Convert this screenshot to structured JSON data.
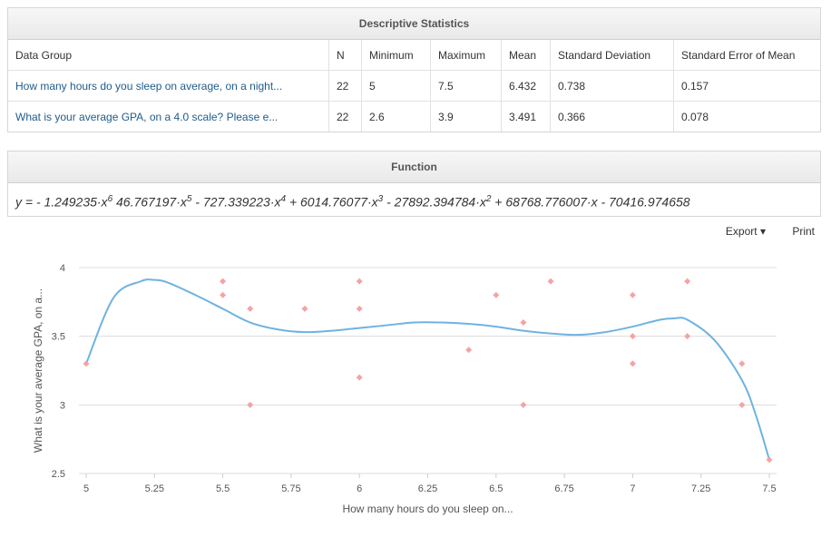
{
  "stats_panel": {
    "title": "Descriptive Statistics",
    "headers": [
      "Data Group",
      "N",
      "Minimum",
      "Maximum",
      "Mean",
      "Standard Deviation",
      "Standard Error of Mean"
    ],
    "rows": [
      [
        "How many hours do you sleep on average, on a night...",
        "22",
        "5",
        "7.5",
        "6.432",
        "0.738",
        "0.157"
      ],
      [
        "What is your average GPA, on a 4.0 scale? Please e...",
        "22",
        "2.6",
        "3.9",
        "3.491",
        "0.366",
        "0.078"
      ]
    ]
  },
  "function_panel": {
    "title": "Function"
  },
  "toolbar": {
    "export_label": "Export",
    "print_label": "Print"
  },
  "colors": {
    "curve": "#6fb3e0",
    "points": "#f4a3a3",
    "link": "#1f5c8b"
  },
  "chart_data": {
    "type": "scatter",
    "xlabel": "How many hours do you sleep on...",
    "ylabel": "What is your average GPA, on a...",
    "xlim": [
      5,
      7.5
    ],
    "ylim": [
      2.5,
      4
    ],
    "x_ticks": [
      "5",
      "5.25",
      "5.5",
      "5.75",
      "6",
      "6.25",
      "6.5",
      "6.75",
      "7",
      "7.25",
      "7.5"
    ],
    "y_ticks": [
      "2.5",
      "3",
      "3.5",
      "4"
    ],
    "grid": true,
    "points": [
      [
        5,
        3.3
      ],
      [
        5.5,
        3.9
      ],
      [
        5.5,
        3.8
      ],
      [
        5.6,
        3.7
      ],
      [
        5.6,
        3.0
      ],
      [
        5.8,
        3.7
      ],
      [
        6,
        3.9
      ],
      [
        6,
        3.7
      ],
      [
        6,
        3.2
      ],
      [
        6.4,
        3.4
      ],
      [
        6.5,
        3.8
      ],
      [
        6.6,
        3.6
      ],
      [
        6.6,
        3.0
      ],
      [
        6.7,
        3.9
      ],
      [
        7,
        3.8
      ],
      [
        7,
        3.5
      ],
      [
        7,
        3.3
      ],
      [
        7.2,
        3.9
      ],
      [
        7.2,
        3.5
      ],
      [
        7.4,
        3.3
      ],
      [
        7.4,
        3.0
      ],
      [
        7.5,
        2.6
      ]
    ],
    "fit": {
      "equation_prefix": "y = - 1.249235·x",
      "equation_parts": [
        {
          "text": "y = - 1.249235·x",
          "sup": "6"
        },
        {
          "text": " 46.767197·x",
          "sup": "5"
        },
        {
          "text": " - 727.339223·x",
          "sup": "4"
        },
        {
          "text": " + 6014.76077·x",
          "sup": "3"
        },
        {
          "text": " - 27892.394784·x",
          "sup": "2"
        },
        {
          "text": " + 68768.776007·x - 70416.974658",
          "sup": ""
        }
      ],
      "curve_x": [
        5,
        5.1,
        5.2,
        5.25,
        5.3,
        5.4,
        5.5,
        5.6,
        5.7,
        5.8,
        5.9,
        6,
        6.1,
        6.2,
        6.3,
        6.4,
        6.5,
        6.6,
        6.7,
        6.8,
        6.9,
        7,
        7.1,
        7.15,
        7.2,
        7.3,
        7.4,
        7.45,
        7.5
      ],
      "curve_y": [
        3.3,
        3.78,
        3.9,
        3.91,
        3.89,
        3.8,
        3.7,
        3.6,
        3.55,
        3.53,
        3.54,
        3.56,
        3.58,
        3.6,
        3.6,
        3.59,
        3.57,
        3.54,
        3.52,
        3.51,
        3.53,
        3.57,
        3.62,
        3.63,
        3.62,
        3.47,
        3.18,
        2.93,
        2.6
      ]
    }
  }
}
